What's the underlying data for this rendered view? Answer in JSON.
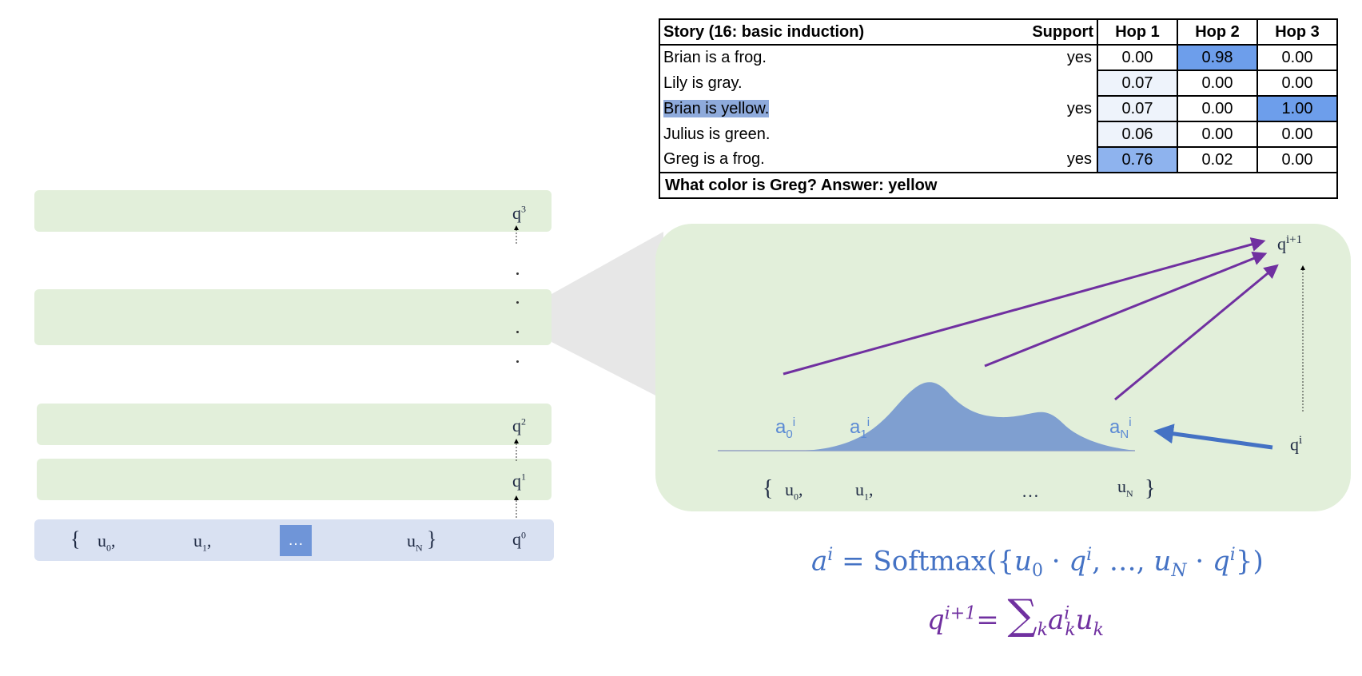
{
  "left_stack": {
    "layers": [
      "q^3",
      "",
      "q^2",
      "q^1"
    ],
    "top_query_label": "q",
    "top_query_sup": "3",
    "q2_label": "q",
    "q2_sup": "2",
    "q1_label": "q",
    "q1_sup": "1",
    "input": {
      "open_brace": "{",
      "u0": "u",
      "u0_sub": "0",
      "u0_comma": ",",
      "u1": "u",
      "u1_sub": "1",
      "u1_comma": ",",
      "ellipsis": "…",
      "uN": "u",
      "uN_sub": "N",
      "close_brace": "}",
      "q0": "q",
      "q0_sup": "0"
    }
  },
  "story_table": {
    "header": {
      "story": "Story (16: basic induction)",
      "support": "Support",
      "hop1": "Hop 1",
      "hop2": "Hop 2",
      "hop3": "Hop 3"
    },
    "rows": [
      {
        "sentence": "Brian is a frog.",
        "support": "yes",
        "hop1": "0.00",
        "hop2": "0.98",
        "hop3": "0.00"
      },
      {
        "sentence": "Lily is gray.",
        "support": "",
        "hop1": "0.07",
        "hop2": "0.00",
        "hop3": "0.00"
      },
      {
        "sentence": "Brian is yellow.",
        "support": "yes",
        "hop1": "0.07",
        "hop2": "0.00",
        "hop3": "1.00"
      },
      {
        "sentence": "Julius is green.",
        "support": "",
        "hop1": "0.06",
        "hop2": "0.00",
        "hop3": "0.00"
      },
      {
        "sentence": "Greg is a frog.",
        "support": "yes",
        "hop1": "0.76",
        "hop2": "0.02",
        "hop3": "0.00"
      }
    ],
    "question": "What color is Greg?  Answer: yellow",
    "highlight_color": "#8eaadb",
    "strong_highlight_color": "#6d9eeb"
  },
  "zoom_panel": {
    "a0": "a",
    "a0_sub": "0",
    "a0_sup": "i",
    "a1": "a",
    "a1_sub": "1",
    "a1_sup": "i",
    "aN": "a",
    "aN_sub": "N",
    "aN_sup": "i",
    "q_next": "q",
    "q_next_sup": "i+1",
    "q_cur": "q",
    "q_cur_sup": "i",
    "memory": {
      "open_brace": "{",
      "u0": "u",
      "u0_sub": "0",
      "u0_comma": ",",
      "u1": "u",
      "u1_sub": "1",
      "u1_comma": ",",
      "ellipsis": "…",
      "uN": "u",
      "uN_sub": "N",
      "close_brace": "}"
    },
    "arrow_color": "#7030a0",
    "attention_color": "#7f9fd0",
    "panel_color": "#e2efda"
  },
  "formulas": {
    "line1": {
      "lhs": "a",
      "lhs_sup": "i",
      "eq": " = Softmax({",
      "u0": "u",
      "u0_sub": "0",
      "dot1": " · ",
      "q1": "q",
      "q1_sup": "i",
      "mid": ", …, ",
      "uN": "u",
      "uN_sub": "N",
      "dot2": " · ",
      "q2": "q",
      "q2_sup": "i",
      "close": "})",
      "color": "#4472c4"
    },
    "line2": {
      "lhs": "q",
      "lhs_sup": "i+1",
      "eq": "= ",
      "sum": "∑",
      "sum_sub": "k",
      "a": "a",
      "a_sup": "i",
      "a_sub": "k",
      "u": "u",
      "u_sub": "k",
      "color": "#7030a0"
    }
  }
}
